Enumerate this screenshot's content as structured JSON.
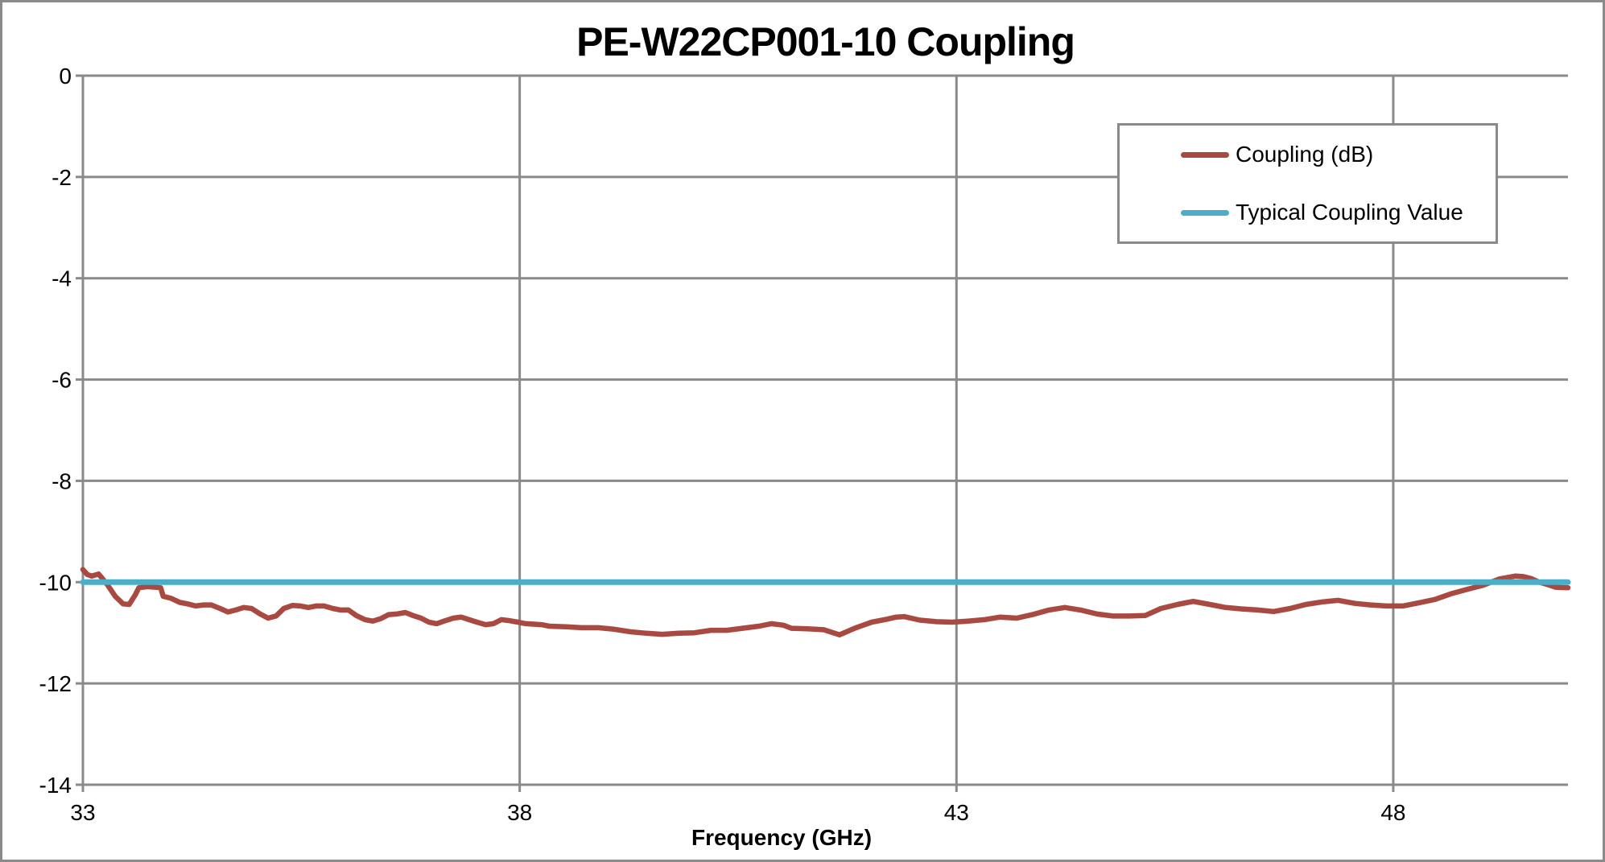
{
  "colors": {
    "background": "#FFFFFF",
    "frame_border": "#8A8A8A",
    "grid": "#8A8A8A",
    "axis": "#8A8A8A",
    "text": "#000000",
    "coupling_line": "#A94A42",
    "typical_line": "#4AAEC9"
  },
  "chart_data": {
    "type": "line",
    "title": "PE-W22CP001-10 Coupling",
    "xlabel": "Frequency (GHz)",
    "ylabel": "",
    "xlim": [
      33,
      50
    ],
    "ylim": [
      -14,
      0
    ],
    "x_ticks": [
      33,
      38,
      43,
      48
    ],
    "y_ticks": [
      0,
      -2,
      -4,
      -6,
      -8,
      -10,
      -12,
      -14
    ],
    "grid": true,
    "legend_position": "inside-upper-right",
    "series": [
      {
        "name": "Coupling (dB)",
        "color": "#A94A42",
        "points": [
          [
            33.0,
            -9.75
          ],
          [
            33.05,
            -9.85
          ],
          [
            33.1,
            -9.88
          ],
          [
            33.18,
            -9.84
          ],
          [
            33.28,
            -10.05
          ],
          [
            33.37,
            -10.28
          ],
          [
            33.46,
            -10.43
          ],
          [
            33.53,
            -10.44
          ],
          [
            33.6,
            -10.25
          ],
          [
            33.64,
            -10.11
          ],
          [
            33.74,
            -10.09
          ],
          [
            33.83,
            -10.1
          ],
          [
            33.89,
            -10.11
          ],
          [
            33.92,
            -10.28
          ],
          [
            34.01,
            -10.32
          ],
          [
            34.11,
            -10.4
          ],
          [
            34.2,
            -10.43
          ],
          [
            34.29,
            -10.47
          ],
          [
            34.38,
            -10.45
          ],
          [
            34.47,
            -10.45
          ],
          [
            34.57,
            -10.52
          ],
          [
            34.66,
            -10.59
          ],
          [
            34.75,
            -10.55
          ],
          [
            34.84,
            -10.5
          ],
          [
            34.93,
            -10.52
          ],
          [
            35.03,
            -10.63
          ],
          [
            35.12,
            -10.71
          ],
          [
            35.21,
            -10.67
          ],
          [
            35.3,
            -10.52
          ],
          [
            35.4,
            -10.46
          ],
          [
            35.49,
            -10.47
          ],
          [
            35.58,
            -10.5
          ],
          [
            35.67,
            -10.47
          ],
          [
            35.76,
            -10.47
          ],
          [
            35.86,
            -10.52
          ],
          [
            35.95,
            -10.55
          ],
          [
            36.04,
            -10.55
          ],
          [
            36.13,
            -10.66
          ],
          [
            36.23,
            -10.74
          ],
          [
            36.32,
            -10.77
          ],
          [
            36.41,
            -10.72
          ],
          [
            36.5,
            -10.64
          ],
          [
            36.59,
            -10.63
          ],
          [
            36.69,
            -10.6
          ],
          [
            36.78,
            -10.66
          ],
          [
            36.87,
            -10.71
          ],
          [
            36.96,
            -10.79
          ],
          [
            37.05,
            -10.82
          ],
          [
            37.15,
            -10.76
          ],
          [
            37.24,
            -10.71
          ],
          [
            37.33,
            -10.69
          ],
          [
            37.42,
            -10.74
          ],
          [
            37.51,
            -10.79
          ],
          [
            37.61,
            -10.84
          ],
          [
            37.7,
            -10.82
          ],
          [
            37.79,
            -10.74
          ],
          [
            37.88,
            -10.76
          ],
          [
            37.98,
            -10.79
          ],
          [
            38.07,
            -10.82
          ],
          [
            38.16,
            -10.83
          ],
          [
            38.25,
            -10.84
          ],
          [
            38.34,
            -10.87
          ],
          [
            38.53,
            -10.88
          ],
          [
            38.71,
            -10.9
          ],
          [
            38.9,
            -10.9
          ],
          [
            39.08,
            -10.93
          ],
          [
            39.27,
            -10.98
          ],
          [
            39.45,
            -11.01
          ],
          [
            39.63,
            -11.03
          ],
          [
            39.82,
            -11.01
          ],
          [
            40.0,
            -11.0
          ],
          [
            40.19,
            -10.95
          ],
          [
            40.37,
            -10.95
          ],
          [
            40.55,
            -10.91
          ],
          [
            40.74,
            -10.87
          ],
          [
            40.88,
            -10.82
          ],
          [
            41.02,
            -10.85
          ],
          [
            41.11,
            -10.91
          ],
          [
            41.29,
            -10.92
          ],
          [
            41.48,
            -10.94
          ],
          [
            41.66,
            -11.04
          ],
          [
            41.85,
            -10.9
          ],
          [
            42.03,
            -10.79
          ],
          [
            42.21,
            -10.73
          ],
          [
            42.31,
            -10.69
          ],
          [
            42.4,
            -10.68
          ],
          [
            42.58,
            -10.75
          ],
          [
            42.77,
            -10.78
          ],
          [
            42.95,
            -10.79
          ],
          [
            43.13,
            -10.77
          ],
          [
            43.32,
            -10.74
          ],
          [
            43.5,
            -10.69
          ],
          [
            43.69,
            -10.71
          ],
          [
            43.87,
            -10.64
          ],
          [
            44.06,
            -10.55
          ],
          [
            44.24,
            -10.5
          ],
          [
            44.42,
            -10.55
          ],
          [
            44.61,
            -10.63
          ],
          [
            44.79,
            -10.67
          ],
          [
            44.98,
            -10.67
          ],
          [
            45.16,
            -10.66
          ],
          [
            45.34,
            -10.52
          ],
          [
            45.53,
            -10.44
          ],
          [
            45.71,
            -10.38
          ],
          [
            45.9,
            -10.44
          ],
          [
            46.08,
            -10.5
          ],
          [
            46.27,
            -10.53
          ],
          [
            46.45,
            -10.55
          ],
          [
            46.63,
            -10.58
          ],
          [
            46.82,
            -10.52
          ],
          [
            47.0,
            -10.44
          ],
          [
            47.19,
            -10.39
          ],
          [
            47.37,
            -10.36
          ],
          [
            47.56,
            -10.42
          ],
          [
            47.74,
            -10.45
          ],
          [
            47.92,
            -10.47
          ],
          [
            48.11,
            -10.47
          ],
          [
            48.29,
            -10.41
          ],
          [
            48.48,
            -10.34
          ],
          [
            48.66,
            -10.23
          ],
          [
            48.85,
            -10.14
          ],
          [
            49.03,
            -10.06
          ],
          [
            49.21,
            -9.94
          ],
          [
            49.4,
            -9.88
          ],
          [
            49.49,
            -9.89
          ],
          [
            49.58,
            -9.93
          ],
          [
            49.67,
            -10.0
          ],
          [
            49.77,
            -10.05
          ],
          [
            49.86,
            -10.1
          ],
          [
            50.0,
            -10.11
          ]
        ]
      },
      {
        "name": "Typical Coupling Value",
        "color": "#4AAEC9",
        "points": [
          [
            33,
            -10
          ],
          [
            50,
            -10
          ]
        ]
      }
    ]
  }
}
